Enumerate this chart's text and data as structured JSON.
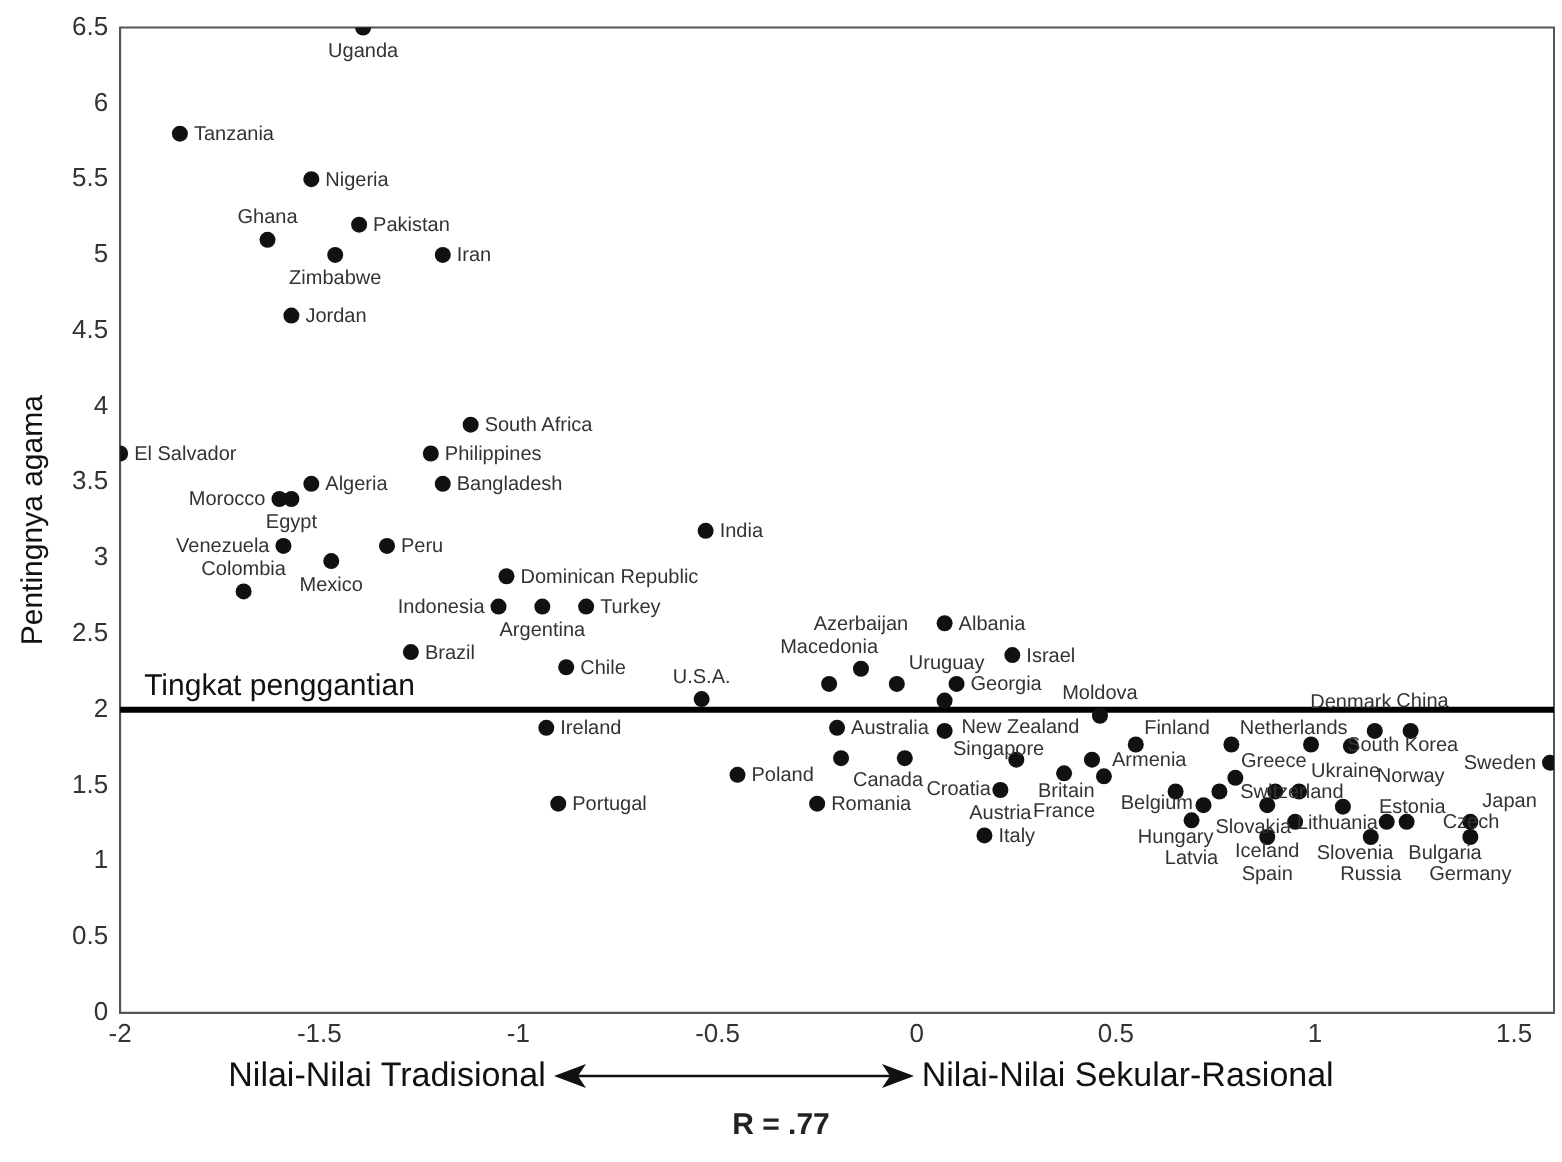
{
  "chart_data": {
    "type": "scatter",
    "ylabel": "Pentingnya agama",
    "color": "#111111",
    "marker": "circle",
    "xlim": [
      -2,
      1.6
    ],
    "ylim": [
      0,
      6.5
    ],
    "xticks": [
      -2,
      -1.5,
      -1,
      -0.5,
      0,
      0.5,
      1,
      1.5
    ],
    "yticks": [
      0,
      0.5,
      1,
      1.5,
      2,
      2.5,
      3,
      3.5,
      4,
      4.5,
      5,
      5.5,
      6,
      6.5
    ],
    "ref_lines": [
      {
        "axis": "y",
        "value": 2,
        "label": "Tingkat penggantian",
        "color": "#000000"
      }
    ],
    "x": [
      -1.39,
      -1.85,
      -1.52,
      -1.4,
      -1.63,
      -1.46,
      -1.19,
      -1.57,
      -1.12,
      -1.22,
      -2.0,
      -1.52,
      -1.6,
      -1.57,
      -1.19,
      -1.59,
      -1.33,
      -1.47,
      -1.69,
      -1.03,
      -0.53,
      -1.05,
      -0.94,
      -0.83,
      -1.27,
      -0.88,
      -0.54,
      -0.93,
      -0.9,
      -0.45,
      -0.2,
      -0.19,
      -0.25,
      -0.22,
      -0.14,
      -0.05,
      0.07,
      0.07,
      0.24,
      0.1,
      0.07,
      -0.03,
      0.25,
      0.21,
      0.17,
      0.37,
      0.46,
      0.44,
      0.47,
      0.55,
      0.65,
      0.76,
      0.72,
      0.69,
      0.88,
      0.95,
      0.88,
      0.79,
      0.8,
      0.9,
      0.96,
      0.99,
      1.09,
      1.15,
      1.24,
      1.59,
      1.07,
      1.14,
      1.18,
      1.23,
      1.39,
      1.39
    ],
    "values": [
      6.5,
      5.8,
      5.5,
      5.2,
      5.1,
      5.0,
      5.0,
      4.6,
      3.88,
      3.69,
      3.69,
      3.49,
      3.39,
      3.39,
      3.49,
      3.08,
      3.08,
      2.98,
      2.78,
      2.88,
      3.18,
      2.68,
      2.68,
      2.68,
      2.38,
      2.28,
      2.07,
      1.88,
      1.38,
      1.57,
      1.88,
      1.68,
      1.38,
      2.17,
      2.27,
      2.17,
      2.06,
      2.57,
      2.36,
      2.17,
      1.86,
      1.68,
      1.67,
      1.47,
      1.17,
      1.58,
      1.96,
      1.67,
      1.56,
      1.77,
      1.46,
      1.46,
      1.37,
      1.27,
      1.37,
      1.26,
      1.16,
      1.77,
      1.55,
      1.46,
      1.46,
      1.77,
      1.76,
      1.86,
      1.86,
      1.65,
      1.36,
      1.16,
      1.26,
      1.26,
      1.26,
      1.16
    ],
    "annotations": [
      {
        "text": "Uganda",
        "x": -1.39,
        "y": 6.5
      },
      {
        "text": "Tanzania",
        "x": -1.85,
        "y": 5.8
      },
      {
        "text": "Nigeria",
        "x": -1.52,
        "y": 5.5
      },
      {
        "text": "Pakistan",
        "x": -1.4,
        "y": 5.2
      },
      {
        "text": "Ghana",
        "x": -1.63,
        "y": 5.1
      },
      {
        "text": "Zimbabwe",
        "x": -1.46,
        "y": 5.0
      },
      {
        "text": "Iran",
        "x": -1.19,
        "y": 5.0
      },
      {
        "text": "Jordan",
        "x": -1.57,
        "y": 4.6
      },
      {
        "text": "South Africa",
        "x": -1.12,
        "y": 3.88
      },
      {
        "text": "Philippines",
        "x": -1.22,
        "y": 3.69
      },
      {
        "text": "El Salvador",
        "x": -2.0,
        "y": 3.69
      },
      {
        "text": "Algeria",
        "x": -1.52,
        "y": 3.49
      },
      {
        "text": "Morocco",
        "x": -1.6,
        "y": 3.39
      },
      {
        "text": "Egypt",
        "x": -1.57,
        "y": 3.39
      },
      {
        "text": "Bangladesh",
        "x": -1.19,
        "y": 3.49
      },
      {
        "text": "Venezuela",
        "x": -1.59,
        "y": 3.08
      },
      {
        "text": "Peru",
        "x": -1.33,
        "y": 3.08
      },
      {
        "text": "Mexico",
        "x": -1.47,
        "y": 2.98
      },
      {
        "text": "Colombia",
        "x": -1.69,
        "y": 2.78
      },
      {
        "text": "Dominican Republic",
        "x": -1.03,
        "y": 2.88
      },
      {
        "text": "India",
        "x": -0.53,
        "y": 3.18
      },
      {
        "text": "Indonesia",
        "x": -1.05,
        "y": 2.68
      },
      {
        "text": "Argentina",
        "x": -0.94,
        "y": 2.68
      },
      {
        "text": "Turkey",
        "x": -0.83,
        "y": 2.68
      },
      {
        "text": "Brazil",
        "x": -1.27,
        "y": 2.38
      },
      {
        "text": "Chile",
        "x": -0.88,
        "y": 2.28
      },
      {
        "text": "U.S.A.",
        "x": -0.54,
        "y": 2.07
      },
      {
        "text": "Ireland",
        "x": -0.93,
        "y": 1.88
      },
      {
        "text": "Portugal",
        "x": -0.9,
        "y": 1.38
      },
      {
        "text": "Poland",
        "x": -0.45,
        "y": 1.57
      },
      {
        "text": "Australia",
        "x": -0.2,
        "y": 1.88
      },
      {
        "text": "Canada",
        "x": -0.19,
        "y": 1.68
      },
      {
        "text": "Romania",
        "x": -0.25,
        "y": 1.38
      },
      {
        "text": "Macedonia",
        "x": -0.22,
        "y": 2.17
      },
      {
        "text": "Azerbaijan",
        "x": -0.14,
        "y": 2.27
      },
      {
        "text": "Uruguay",
        "x": -0.05,
        "y": 2.17
      },
      {
        "text": "New Zealand",
        "x": 0.07,
        "y": 2.06
      },
      {
        "text": "Albania",
        "x": 0.07,
        "y": 2.57
      },
      {
        "text": "Israel",
        "x": 0.24,
        "y": 2.36
      },
      {
        "text": "Georgia",
        "x": 0.1,
        "y": 2.17
      },
      {
        "text": "Singapore",
        "x": 0.07,
        "y": 1.86
      },
      {
        "text": "Croatia",
        "x": -0.03,
        "y": 1.68
      },
      {
        "text": "Britain",
        "x": 0.25,
        "y": 1.67
      },
      {
        "text": "Austria",
        "x": 0.21,
        "y": 1.47
      },
      {
        "text": "Italy",
        "x": 0.17,
        "y": 1.17
      },
      {
        "text": "France",
        "x": 0.37,
        "y": 1.58
      },
      {
        "text": "Moldova",
        "x": 0.46,
        "y": 1.96
      },
      {
        "text": "Armenia",
        "x": 0.44,
        "y": 1.67
      },
      {
        "text": "Belgium",
        "x": 0.47,
        "y": 1.56
      },
      {
        "text": "Finland",
        "x": 0.55,
        "y": 1.77
      },
      {
        "text": "Hungary",
        "x": 0.65,
        "y": 1.46
      },
      {
        "text": "Greece",
        "x": 0.76,
        "y": 1.46
      },
      {
        "text": "Slovakia",
        "x": 0.72,
        "y": 1.37
      },
      {
        "text": "Latvia",
        "x": 0.69,
        "y": 1.27
      },
      {
        "text": "Iceland",
        "x": 0.88,
        "y": 1.37
      },
      {
        "text": "Slovenia",
        "x": 0.95,
        "y": 1.26
      },
      {
        "text": "Spain",
        "x": 0.88,
        "y": 1.16
      },
      {
        "text": "Netherlands",
        "x": 0.79,
        "y": 1.77
      },
      {
        "text": "Switzerland",
        "x": 0.8,
        "y": 1.55
      },
      {
        "text": "Lithuania",
        "x": 0.9,
        "y": 1.46
      },
      {
        "text": "Ukraine",
        "x": 0.96,
        "y": 1.46
      },
      {
        "text": "South Korea",
        "x": 0.99,
        "y": 1.77
      },
      {
        "text": "Denmark",
        "x": 1.09,
        "y": 1.76
      },
      {
        "text": "China",
        "x": 1.15,
        "y": 1.86
      },
      {
        "text": "Norway",
        "x": 1.24,
        "y": 1.86
      },
      {
        "text": "Sweden",
        "x": 1.59,
        "y": 1.65
      },
      {
        "text": "Estonia",
        "x": 1.07,
        "y": 1.36
      },
      {
        "text": "Russia",
        "x": 1.14,
        "y": 1.16
      },
      {
        "text": "Bulgaria",
        "x": 1.18,
        "y": 1.26
      },
      {
        "text": "Czech",
        "x": 1.23,
        "y": 1.26
      },
      {
        "text": "Japan",
        "x": 1.39,
        "y": 1.26
      },
      {
        "text": "Germany",
        "x": 1.39,
        "y": 1.16
      },
      "Nilai-Nilai Tradisional",
      "Nilai-Nilai Sekular-Rasional",
      "R = .77"
    ]
  }
}
